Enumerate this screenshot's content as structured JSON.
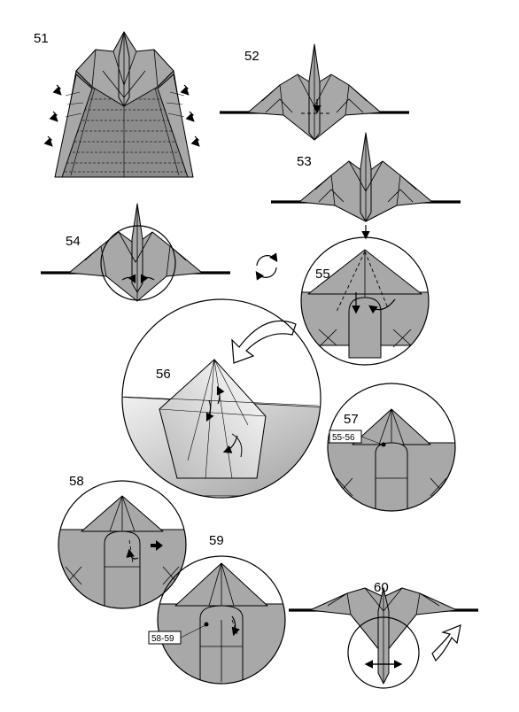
{
  "steps": [
    {
      "number": "51"
    },
    {
      "number": "52"
    },
    {
      "number": "53"
    },
    {
      "number": "54"
    },
    {
      "number": "55"
    },
    {
      "number": "56"
    },
    {
      "number": "57",
      "reference": "55-56"
    },
    {
      "number": "58"
    },
    {
      "number": "59",
      "reference": "58-59"
    },
    {
      "number": "60"
    }
  ],
  "colors": {
    "paper": "#a8a8a8",
    "paper_dark": "#8c8c8c",
    "line": "#000000",
    "background": "#ffffff"
  },
  "icons": [
    "rotate-icon",
    "fold-arrow",
    "push-arrow",
    "turn-over-arrow",
    "pleat-arrow"
  ]
}
